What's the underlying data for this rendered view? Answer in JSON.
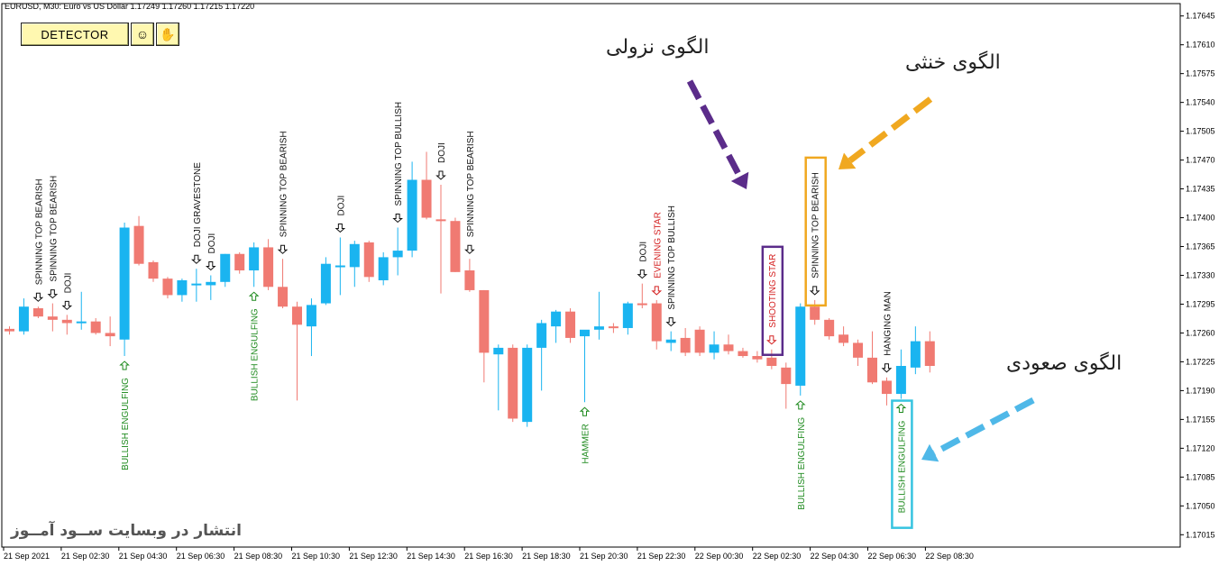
{
  "header": {
    "symbol_line": "EURUSD, M30:  Euro vs US Dollar  1.17249 1.17260 1.17215 1.17220"
  },
  "toolbar": {
    "detector_label": "DETECTOR",
    "smiley_icon": "☺",
    "hand_icon": "✋"
  },
  "watermark": "انتشار در وبسایت  ســود آمــوز",
  "annotations": {
    "bearish_title": "الگوی نزولی",
    "neutral_title": "الگوی خنثی",
    "bullish_title": "الگوی صعودی"
  },
  "colors": {
    "bull": "#1ab4f0",
    "bear": "#f07a72",
    "purple_arrow": "#5b2c8a",
    "orange_arrow": "#f0a820",
    "cyan_arrow": "#4fb8e8",
    "green_text": "#1e8a1e",
    "red_text": "#d42020",
    "black_text": "#111111"
  },
  "chart_data": {
    "type": "candlestick",
    "y_ticks": [
      "1.17645",
      "1.17610",
      "1.17575",
      "1.17540",
      "1.17505",
      "1.17470",
      "1.17435",
      "1.17400",
      "1.17365",
      "1.17330",
      "1.17295",
      "1.17260",
      "1.17225",
      "1.17190",
      "1.17155",
      "1.17120",
      "1.17085",
      "1.17050",
      "1.17015"
    ],
    "ylim": [
      1.17,
      1.1766
    ],
    "x_labels": [
      "21 Sep 2021",
      "21 Sep 02:30",
      "21 Sep 04:30",
      "21 Sep 06:30",
      "21 Sep 08:30",
      "21 Sep 10:30",
      "21 Sep 12:30",
      "21 Sep 14:30",
      "21 Sep 16:30",
      "21 Sep 18:30",
      "21 Sep 20:30",
      "21 Sep 22:30",
      "22 Sep 00:30",
      "22 Sep 02:30",
      "22 Sep 04:30",
      "22 Sep 06:30",
      "22 Sep 08:30"
    ],
    "candles": [
      {
        "o": 1.17265,
        "h": 1.17268,
        "l": 1.17258,
        "c": 1.17262
      },
      {
        "o": 1.17262,
        "h": 1.17302,
        "l": 1.17258,
        "c": 1.17292
      },
      {
        "o": 1.1729,
        "h": 1.17292,
        "l": 1.17278,
        "c": 1.1728
      },
      {
        "o": 1.1728,
        "h": 1.17296,
        "l": 1.17262,
        "c": 1.17276
      },
      {
        "o": 1.17276,
        "h": 1.17282,
        "l": 1.17258,
        "c": 1.17272
      },
      {
        "o": 1.17272,
        "h": 1.1731,
        "l": 1.17264,
        "c": 1.17274
      },
      {
        "o": 1.17274,
        "h": 1.17278,
        "l": 1.17258,
        "c": 1.1726
      },
      {
        "o": 1.1726,
        "h": 1.1728,
        "l": 1.17244,
        "c": 1.17256
      },
      {
        "o": 1.17252,
        "h": 1.17394,
        "l": 1.17232,
        "c": 1.17388
      },
      {
        "o": 1.1739,
        "h": 1.17402,
        "l": 1.17342,
        "c": 1.17344
      },
      {
        "o": 1.17346,
        "h": 1.17348,
        "l": 1.17322,
        "c": 1.17326
      },
      {
        "o": 1.17326,
        "h": 1.17328,
        "l": 1.17302,
        "c": 1.17306
      },
      {
        "o": 1.17306,
        "h": 1.17326,
        "l": 1.17298,
        "c": 1.17324
      },
      {
        "o": 1.1732,
        "h": 1.17338,
        "l": 1.17298,
        "c": 1.1732
      },
      {
        "o": 1.17318,
        "h": 1.1733,
        "l": 1.173,
        "c": 1.17322
      },
      {
        "o": 1.17322,
        "h": 1.17356,
        "l": 1.17316,
        "c": 1.17356
      },
      {
        "o": 1.17356,
        "h": 1.17358,
        "l": 1.17332,
        "c": 1.17336
      },
      {
        "o": 1.17336,
        "h": 1.1737,
        "l": 1.17316,
        "c": 1.17364
      },
      {
        "o": 1.17364,
        "h": 1.17374,
        "l": 1.17312,
        "c": 1.17316
      },
      {
        "o": 1.17316,
        "h": 1.1735,
        "l": 1.1729,
        "c": 1.17292
      },
      {
        "o": 1.17292,
        "h": 1.17298,
        "l": 1.17178,
        "c": 1.1727
      },
      {
        "o": 1.17268,
        "h": 1.17302,
        "l": 1.17232,
        "c": 1.17294
      },
      {
        "o": 1.17296,
        "h": 1.17352,
        "l": 1.17294,
        "c": 1.17344
      },
      {
        "o": 1.1734,
        "h": 1.17376,
        "l": 1.17306,
        "c": 1.17342
      },
      {
        "o": 1.1734,
        "h": 1.17372,
        "l": 1.17316,
        "c": 1.17368
      },
      {
        "o": 1.1737,
        "h": 1.17372,
        "l": 1.17322,
        "c": 1.17328
      },
      {
        "o": 1.17324,
        "h": 1.17358,
        "l": 1.17318,
        "c": 1.17352
      },
      {
        "o": 1.17352,
        "h": 1.17388,
        "l": 1.1733,
        "c": 1.1736
      },
      {
        "o": 1.1736,
        "h": 1.17468,
        "l": 1.17352,
        "c": 1.17446
      },
      {
        "o": 1.17446,
        "h": 1.1748,
        "l": 1.17398,
        "c": 1.174
      },
      {
        "o": 1.17398,
        "h": 1.1744,
        "l": 1.17308,
        "c": 1.17396
      },
      {
        "o": 1.17396,
        "h": 1.174,
        "l": 1.17334,
        "c": 1.17334
      },
      {
        "o": 1.17336,
        "h": 1.1735,
        "l": 1.1731,
        "c": 1.17312
      },
      {
        "o": 1.17312,
        "h": 1.17312,
        "l": 1.172,
        "c": 1.17236
      },
      {
        "o": 1.17234,
        "h": 1.17246,
        "l": 1.17166,
        "c": 1.17242
      },
      {
        "o": 1.17242,
        "h": 1.17246,
        "l": 1.17152,
        "c": 1.17156
      },
      {
        "o": 1.17152,
        "h": 1.17246,
        "l": 1.17146,
        "c": 1.17242
      },
      {
        "o": 1.17242,
        "h": 1.17276,
        "l": 1.1719,
        "c": 1.17272
      },
      {
        "o": 1.17268,
        "h": 1.17288,
        "l": 1.17248,
        "c": 1.17286
      },
      {
        "o": 1.17286,
        "h": 1.1729,
        "l": 1.17248,
        "c": 1.17254
      },
      {
        "o": 1.17256,
        "h": 1.17262,
        "l": 1.17176,
        "c": 1.17264
      },
      {
        "o": 1.17264,
        "h": 1.1731,
        "l": 1.17252,
        "c": 1.17268
      },
      {
        "o": 1.17268,
        "h": 1.17272,
        "l": 1.1726,
        "c": 1.17266
      },
      {
        "o": 1.17266,
        "h": 1.17298,
        "l": 1.17258,
        "c": 1.17296
      },
      {
        "o": 1.17296,
        "h": 1.1732,
        "l": 1.1729,
        "c": 1.17294
      },
      {
        "o": 1.17296,
        "h": 1.173,
        "l": 1.1724,
        "c": 1.1725
      },
      {
        "o": 1.17248,
        "h": 1.17262,
        "l": 1.17238,
        "c": 1.17252
      },
      {
        "o": 1.17254,
        "h": 1.17266,
        "l": 1.17232,
        "c": 1.17236
      },
      {
        "o": 1.17264,
        "h": 1.17268,
        "l": 1.17232,
        "c": 1.17236
      },
      {
        "o": 1.17236,
        "h": 1.17262,
        "l": 1.17228,
        "c": 1.17246
      },
      {
        "o": 1.17246,
        "h": 1.17258,
        "l": 1.17234,
        "c": 1.17238
      },
      {
        "o": 1.17238,
        "h": 1.17242,
        "l": 1.1723,
        "c": 1.17232
      },
      {
        "o": 1.17232,
        "h": 1.17238,
        "l": 1.17224,
        "c": 1.17228
      },
      {
        "o": 1.1723,
        "h": 1.1724,
        "l": 1.17216,
        "c": 1.1722
      },
      {
        "o": 1.17218,
        "h": 1.17224,
        "l": 1.17168,
        "c": 1.17198
      },
      {
        "o": 1.17196,
        "h": 1.17296,
        "l": 1.17184,
        "c": 1.17292
      },
      {
        "o": 1.17292,
        "h": 1.173,
        "l": 1.1727,
        "c": 1.17276
      },
      {
        "o": 1.17276,
        "h": 1.17278,
        "l": 1.17252,
        "c": 1.17256
      },
      {
        "o": 1.17258,
        "h": 1.17268,
        "l": 1.17244,
        "c": 1.17248
      },
      {
        "o": 1.17248,
        "h": 1.17252,
        "l": 1.1722,
        "c": 1.1723
      },
      {
        "o": 1.1723,
        "h": 1.17262,
        "l": 1.17198,
        "c": 1.172
      },
      {
        "o": 1.17202,
        "h": 1.17206,
        "l": 1.17172,
        "c": 1.17186
      },
      {
        "o": 1.17186,
        "h": 1.1724,
        "l": 1.1718,
        "c": 1.1722
      },
      {
        "o": 1.17218,
        "h": 1.17268,
        "l": 1.1721,
        "c": 1.1725
      },
      {
        "o": 1.1725,
        "h": 1.17262,
        "l": 1.17212,
        "c": 1.1722
      }
    ],
    "pattern_labels": [
      {
        "text": "SPINNING TOP BEARISH",
        "c": 2,
        "pos": "above",
        "arrow": "down",
        "color": "black"
      },
      {
        "text": "SPINNING TOP BEARISH",
        "c": 3,
        "pos": "above",
        "arrow": "down",
        "color": "black"
      },
      {
        "text": "DOJI",
        "c": 4,
        "pos": "above",
        "arrow": "down",
        "color": "black"
      },
      {
        "text": "BULLISH ENGULFING",
        "c": 8,
        "pos": "below",
        "arrow": "up",
        "color": "green"
      },
      {
        "text": "DOJI GRAVESTONE",
        "c": 13,
        "pos": "above",
        "arrow": "down",
        "color": "black"
      },
      {
        "text": "DOJI",
        "c": 14,
        "pos": "above",
        "arrow": "down",
        "color": "black"
      },
      {
        "text": "BULLISH ENGULFING",
        "c": 17,
        "pos": "below",
        "arrow": "up",
        "color": "green"
      },
      {
        "text": "SPINNING TOP BEARISH",
        "c": 19,
        "pos": "above",
        "arrow": "down",
        "color": "black"
      },
      {
        "text": "DOJI",
        "c": 23,
        "pos": "above",
        "arrow": "down",
        "color": "black"
      },
      {
        "text": "SPINNING TOP BULLISH",
        "c": 27,
        "pos": "above",
        "arrow": "down",
        "color": "black"
      },
      {
        "text": "DOJI",
        "c": 30,
        "pos": "above",
        "arrow": "down",
        "color": "black"
      },
      {
        "text": "SPINNING TOP BEARISH",
        "c": 32,
        "pos": "above",
        "arrow": "down",
        "color": "black"
      },
      {
        "text": "HAMMER",
        "c": 40,
        "pos": "below",
        "arrow": "up",
        "color": "green"
      },
      {
        "text": "DOJI",
        "c": 44,
        "pos": "above",
        "arrow": "down",
        "color": "black"
      },
      {
        "text": "EVENING STAR",
        "c": 45,
        "pos": "above",
        "arrow": "down",
        "color": "red"
      },
      {
        "text": "SPINNING TOP BULLISH",
        "c": 46,
        "pos": "above",
        "arrow": "down",
        "color": "black"
      },
      {
        "text": "SHOOTING STAR",
        "c": 53,
        "pos": "above",
        "arrow": "down",
        "color": "red",
        "box": "#5b2c8a"
      },
      {
        "text": "BULLISH ENGULFING",
        "c": 55,
        "pos": "below",
        "arrow": "up",
        "color": "green"
      },
      {
        "text": "SPINNING TOP BEARISH",
        "c": 56,
        "pos": "above",
        "arrow": "down",
        "color": "black",
        "box": "#f0a820"
      },
      {
        "text": "HANGING MAN",
        "c": 61,
        "pos": "above",
        "arrow": "down",
        "color": "black"
      },
      {
        "text": "BULLISH ENGULFING",
        "c": 62,
        "pos": "below",
        "arrow": "up",
        "color": "green",
        "box": "#36c4e0"
      }
    ]
  }
}
